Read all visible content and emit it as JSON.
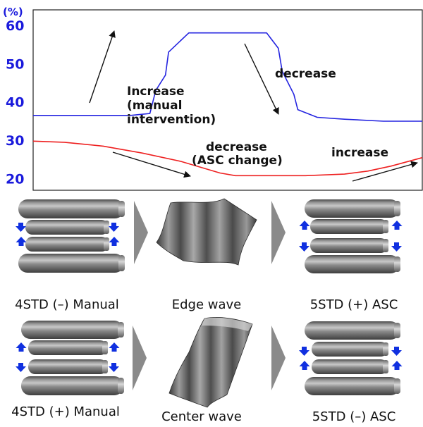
{
  "chart_data": {
    "type": "line",
    "y_unit": "(%)",
    "ylim": [
      17,
      64
    ],
    "y_ticks": [
      {
        "label": "60",
        "value": 60
      },
      {
        "label": "50",
        "value": 50
      },
      {
        "label": "40",
        "value": 40
      },
      {
        "label": "30",
        "value": 30
      },
      {
        "label": "20",
        "value": 20
      }
    ],
    "series": [
      {
        "color": "#2424e0",
        "x": [
          0,
          25,
          30,
          31.5,
          34,
          34.8,
          40,
          55,
          60,
          63,
          64,
          67,
          68,
          73,
          80,
          90,
          100
        ],
        "values": [
          36.5,
          36.5,
          37,
          43,
          47,
          53,
          58,
          58,
          58,
          54,
          48,
          42,
          38,
          36,
          35.5,
          35,
          35
        ]
      },
      {
        "color": "#ee2020",
        "x": [
          0,
          8,
          18,
          28,
          38,
          48,
          52,
          60,
          70,
          80,
          86,
          92,
          100
        ],
        "values": [
          29.8,
          29.5,
          28.5,
          26.7,
          24.5,
          21.5,
          20.8,
          20.8,
          20.8,
          21.2,
          22,
          23.3,
          25.5
        ]
      }
    ],
    "annotations": {
      "increase_manual": [
        "Increase",
        "(manual",
        "intervention)"
      ],
      "decrease_top": "decrease",
      "decrease_asc": [
        "decrease",
        "(ASC change)"
      ],
      "increase_right": "increase"
    }
  },
  "panels": [
    {
      "roll_label": "4STD (–) Manual",
      "wave_label": "Edge wave",
      "result_label": "5STD (+) ASC"
    },
    {
      "roll_label": "4STD (+) Manual",
      "wave_label": "Center wave",
      "result_label": "5STD (–) ASC"
    }
  ],
  "colors": {
    "blue_series": "#2424e0",
    "red_series": "#ee2020",
    "arrow_blue": "#1030e0",
    "roll_gray": "#7a7a7a",
    "chevron": "#8a8a8a"
  }
}
